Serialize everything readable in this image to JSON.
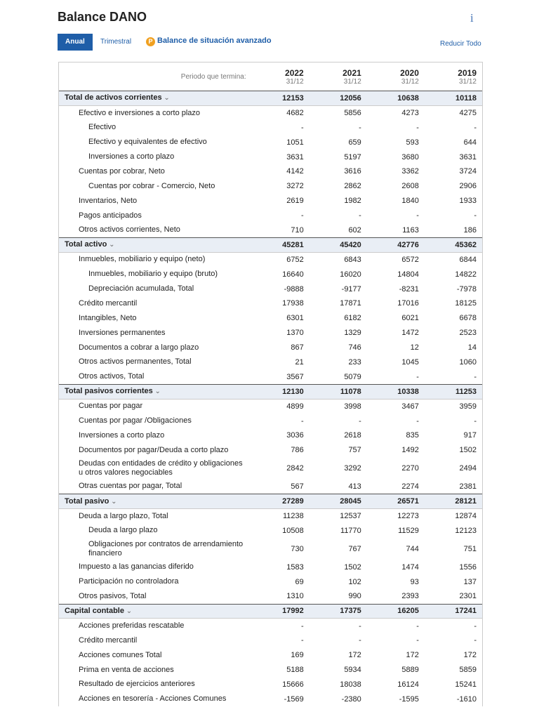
{
  "header": {
    "title": "Balance DANO",
    "info": "i",
    "tabs": [
      "Anual",
      "Trimestral"
    ],
    "advanced_link": "Balance de situación avanzado",
    "collapse": "Reducir Todo"
  },
  "table": {
    "period_label": "Periodo que termina:",
    "columns": [
      {
        "year": "2022",
        "date": "31/12"
      },
      {
        "year": "2021",
        "date": "31/12"
      },
      {
        "year": "2020",
        "date": "31/12"
      },
      {
        "year": "2019",
        "date": "31/12"
      }
    ],
    "rows": [
      {
        "label": "Total de activos corrientes",
        "level": 0,
        "values": [
          12153,
          12056,
          10638,
          10118
        ]
      },
      {
        "label": "Efectivo e inversiones a corto plazo",
        "level": 1,
        "values": [
          4682,
          5856,
          4273,
          4275
        ]
      },
      {
        "label": "Efectivo",
        "level": 2,
        "values": [
          "-",
          "-",
          "-",
          "-"
        ]
      },
      {
        "label": "Efectivo y equivalentes de efectivo",
        "level": 2,
        "values": [
          1051,
          659,
          593,
          644
        ]
      },
      {
        "label": "Inversiones a corto plazo",
        "level": 2,
        "values": [
          3631,
          5197,
          3680,
          3631
        ]
      },
      {
        "label": "Cuentas por cobrar, Neto",
        "level": 1,
        "values": [
          4142,
          3616,
          3362,
          3724
        ]
      },
      {
        "label": "Cuentas por cobrar - Comercio, Neto",
        "level": 2,
        "values": [
          3272,
          2862,
          2608,
          2906
        ]
      },
      {
        "label": "Inventarios, Neto",
        "level": 1,
        "values": [
          2619,
          1982,
          1840,
          1933
        ]
      },
      {
        "label": "Pagos anticipados",
        "level": 1,
        "values": [
          "-",
          "-",
          "-",
          "-"
        ]
      },
      {
        "label": "Otros activos corrientes, Neto",
        "level": 1,
        "values": [
          710,
          602,
          1163,
          186
        ]
      },
      {
        "label": "Total activo",
        "level": 0,
        "values": [
          45281,
          45420,
          42776,
          45362
        ]
      },
      {
        "label": "Inmuebles, mobiliario y equipo (neto)",
        "level": 1,
        "values": [
          6752,
          6843,
          6572,
          6844
        ]
      },
      {
        "label": "Inmuebles, mobiliario y equipo (bruto)",
        "level": 2,
        "values": [
          16640,
          16020,
          14804,
          14822
        ]
      },
      {
        "label": "Depreciación acumulada, Total",
        "level": 2,
        "values": [
          -9888,
          -9177,
          -8231,
          -7978
        ]
      },
      {
        "label": "Crédito mercantil",
        "level": 1,
        "values": [
          17938,
          17871,
          17016,
          18125
        ]
      },
      {
        "label": "Intangibles, Neto",
        "level": 1,
        "values": [
          6301,
          6182,
          6021,
          6678
        ]
      },
      {
        "label": "Inversiones permanentes",
        "level": 1,
        "values": [
          1370,
          1329,
          1472,
          2523
        ]
      },
      {
        "label": "Documentos a cobrar a largo plazo",
        "level": 1,
        "values": [
          867,
          746,
          12,
          14
        ]
      },
      {
        "label": "Otros activos permanentes, Total",
        "level": 1,
        "values": [
          21,
          233,
          1045,
          1060
        ]
      },
      {
        "label": "Otros activos, Total",
        "level": 1,
        "values": [
          3567,
          5079,
          "-",
          "-"
        ]
      },
      {
        "label": "Total pasivos corrientes",
        "level": 0,
        "values": [
          12130,
          11078,
          10338,
          11253
        ]
      },
      {
        "label": "Cuentas por pagar",
        "level": 1,
        "values": [
          4899,
          3998,
          3467,
          3959
        ]
      },
      {
        "label": "Cuentas por pagar /Obligaciones",
        "level": 1,
        "values": [
          "-",
          "-",
          "-",
          "-"
        ]
      },
      {
        "label": "Inversiones a corto plazo",
        "level": 1,
        "values": [
          3036,
          2618,
          835,
          917
        ]
      },
      {
        "label": "Documentos por pagar/Deuda a corto plazo",
        "level": 1,
        "values": [
          786,
          757,
          1492,
          1502
        ]
      },
      {
        "label": "Deudas con entidades de crédito y obligaciones u otros valores negociables",
        "level": 1,
        "values": [
          2842,
          3292,
          2270,
          2494
        ]
      },
      {
        "label": "Otras cuentas por pagar, Total",
        "level": 1,
        "values": [
          567,
          413,
          2274,
          2381
        ]
      },
      {
        "label": "Total pasivo",
        "level": 0,
        "values": [
          27289,
          28045,
          26571,
          28121
        ]
      },
      {
        "label": "Deuda a largo plazo, Total",
        "level": 1,
        "values": [
          11238,
          12537,
          12273,
          12874
        ]
      },
      {
        "label": "Deuda a largo plazo",
        "level": 2,
        "values": [
          10508,
          11770,
          11529,
          12123
        ]
      },
      {
        "label": "Obligaciones por contratos de arrendamiento financiero",
        "level": 2,
        "values": [
          730,
          767,
          744,
          751
        ]
      },
      {
        "label": "Impuesto a las ganancias diferido",
        "level": 1,
        "values": [
          1583,
          1502,
          1474,
          1556
        ]
      },
      {
        "label": "Participación no controladora",
        "level": 1,
        "values": [
          69,
          102,
          93,
          137
        ]
      },
      {
        "label": "Otros pasivos, Total",
        "level": 1,
        "values": [
          1310,
          990,
          2393,
          2301
        ]
      },
      {
        "label": "Capital contable",
        "level": 0,
        "values": [
          17992,
          17375,
          16205,
          17241
        ]
      },
      {
        "label": "Acciones preferidas rescatable",
        "level": 1,
        "values": [
          "-",
          "-",
          "-",
          "-"
        ]
      },
      {
        "label": "Crédito mercantil",
        "level": 1,
        "values": [
          "-",
          "-",
          "-",
          "-"
        ]
      },
      {
        "label": "Acciones comunes Total",
        "level": 1,
        "values": [
          169,
          172,
          172,
          172
        ]
      },
      {
        "label": "Prima en venta de acciones",
        "level": 1,
        "values": [
          5188,
          5934,
          5889,
          5859
        ]
      },
      {
        "label": "Resultado de ejercicios anteriores",
        "level": 1,
        "values": [
          15666,
          18038,
          16124,
          15241
        ]
      },
      {
        "label": "Acciones en tesorería - Acciones Comunes",
        "level": 1,
        "values": [
          -1569,
          -2380,
          -1595,
          -1610
        ]
      }
    ]
  }
}
